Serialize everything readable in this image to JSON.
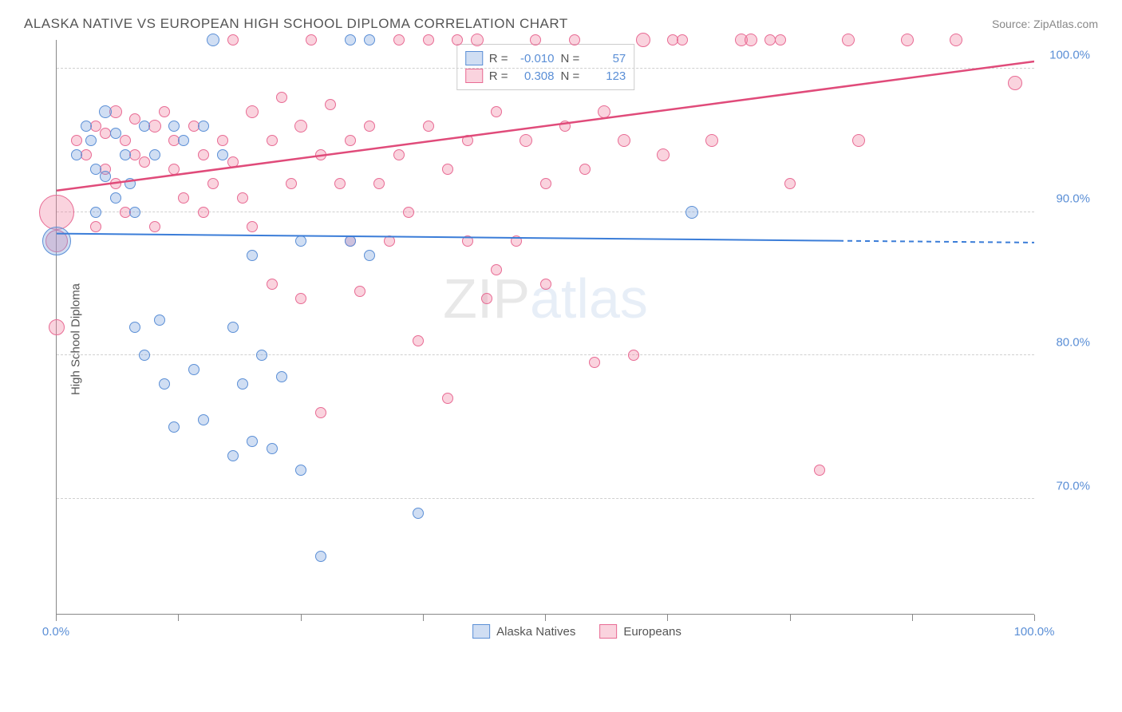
{
  "header": {
    "title": "ALASKA NATIVE VS EUROPEAN HIGH SCHOOL DIPLOMA CORRELATION CHART",
    "source": "Source: ZipAtlas.com"
  },
  "chart": {
    "type": "scatter",
    "y_axis_title": "High School Diploma",
    "xlim": [
      0,
      100
    ],
    "ylim": [
      62,
      102
    ],
    "x_ticks": [
      0,
      12.5,
      25,
      37.5,
      50,
      62.5,
      75,
      87.5,
      100
    ],
    "x_tick_labels": {
      "0": "0.0%",
      "100": "100.0%"
    },
    "y_gridlines": [
      70,
      80,
      90,
      100
    ],
    "y_tick_labels": {
      "70": "70.0%",
      "80": "80.0%",
      "90": "90.0%",
      "100": "100.0%"
    },
    "grid_color": "#d0d0d0",
    "axis_color": "#888888",
    "background_color": "#ffffff",
    "watermark": {
      "part1": "ZIP",
      "part2": "atlas"
    },
    "series": {
      "alaska": {
        "label": "Alaska Natives",
        "fill": "rgba(120,160,220,0.35)",
        "stroke": "#5b8fd6",
        "R_label": "R = ",
        "R": "-0.010",
        "N_label": "N = ",
        "N": "57",
        "trend": {
          "x1": 0,
          "y1": 88.5,
          "x2": 80,
          "y2": 88.0,
          "color": "#3b7dd8",
          "width": 2,
          "dash_extend_to": 100
        },
        "points": [
          {
            "x": 0,
            "y": 88,
            "r": 18
          },
          {
            "x": 2,
            "y": 94,
            "r": 7
          },
          {
            "x": 3,
            "y": 96,
            "r": 7
          },
          {
            "x": 3.5,
            "y": 95,
            "r": 7
          },
          {
            "x": 4,
            "y": 93,
            "r": 7
          },
          {
            "x": 4,
            "y": 90,
            "r": 7
          },
          {
            "x": 5,
            "y": 97,
            "r": 8
          },
          {
            "x": 5,
            "y": 92.5,
            "r": 7
          },
          {
            "x": 6,
            "y": 95.5,
            "r": 7
          },
          {
            "x": 6,
            "y": 91,
            "r": 7
          },
          {
            "x": 7,
            "y": 94,
            "r": 7
          },
          {
            "x": 7.5,
            "y": 92,
            "r": 7
          },
          {
            "x": 8,
            "y": 90,
            "r": 7
          },
          {
            "x": 8,
            "y": 82,
            "r": 7
          },
          {
            "x": 9,
            "y": 96,
            "r": 7
          },
          {
            "x": 9,
            "y": 80,
            "r": 7
          },
          {
            "x": 10,
            "y": 94,
            "r": 7
          },
          {
            "x": 10.5,
            "y": 82.5,
            "r": 7
          },
          {
            "x": 11,
            "y": 78,
            "r": 7
          },
          {
            "x": 12,
            "y": 96,
            "r": 7
          },
          {
            "x": 12,
            "y": 75,
            "r": 7
          },
          {
            "x": 13,
            "y": 95,
            "r": 7
          },
          {
            "x": 14,
            "y": 79,
            "r": 7
          },
          {
            "x": 15,
            "y": 96,
            "r": 7
          },
          {
            "x": 15,
            "y": 75.5,
            "r": 7
          },
          {
            "x": 16,
            "y": 102,
            "r": 8
          },
          {
            "x": 17,
            "y": 94,
            "r": 7
          },
          {
            "x": 18,
            "y": 82,
            "r": 7
          },
          {
            "x": 18,
            "y": 73,
            "r": 7
          },
          {
            "x": 19,
            "y": 78,
            "r": 7
          },
          {
            "x": 20,
            "y": 87,
            "r": 7
          },
          {
            "x": 20,
            "y": 74,
            "r": 7
          },
          {
            "x": 21,
            "y": 80,
            "r": 7
          },
          {
            "x": 22,
            "y": 73.5,
            "r": 7
          },
          {
            "x": 23,
            "y": 78.5,
            "r": 7
          },
          {
            "x": 25,
            "y": 88,
            "r": 7
          },
          {
            "x": 25,
            "y": 72,
            "r": 7
          },
          {
            "x": 27,
            "y": 66,
            "r": 7
          },
          {
            "x": 30,
            "y": 102,
            "r": 7
          },
          {
            "x": 30,
            "y": 88,
            "r": 7
          },
          {
            "x": 32,
            "y": 102,
            "r": 7
          },
          {
            "x": 32,
            "y": 87,
            "r": 7
          },
          {
            "x": 37,
            "y": 69,
            "r": 7
          },
          {
            "x": 65,
            "y": 90,
            "r": 8
          }
        ]
      },
      "european": {
        "label": "Europeans",
        "fill": "rgba(240,130,160,0.35)",
        "stroke": "#e86b94",
        "R_label": "R = ",
        "R": "0.308",
        "N_label": "N = ",
        "N": "123",
        "trend": {
          "x1": 0,
          "y1": 91.5,
          "x2": 100,
          "y2": 100.5,
          "color": "#e04b7a",
          "width": 2.5
        },
        "points": [
          {
            "x": 0,
            "y": 90,
            "r": 22
          },
          {
            "x": 0,
            "y": 82,
            "r": 10
          },
          {
            "x": 0,
            "y": 88,
            "r": 14
          },
          {
            "x": 2,
            "y": 95,
            "r": 7
          },
          {
            "x": 3,
            "y": 94,
            "r": 7
          },
          {
            "x": 4,
            "y": 96,
            "r": 7
          },
          {
            "x": 4,
            "y": 89,
            "r": 7
          },
          {
            "x": 5,
            "y": 95.5,
            "r": 7
          },
          {
            "x": 5,
            "y": 93,
            "r": 7
          },
          {
            "x": 6,
            "y": 97,
            "r": 8
          },
          {
            "x": 6,
            "y": 92,
            "r": 7
          },
          {
            "x": 7,
            "y": 95,
            "r": 7
          },
          {
            "x": 7,
            "y": 90,
            "r": 7
          },
          {
            "x": 8,
            "y": 94,
            "r": 7
          },
          {
            "x": 8,
            "y": 96.5,
            "r": 7
          },
          {
            "x": 9,
            "y": 93.5,
            "r": 7
          },
          {
            "x": 10,
            "y": 96,
            "r": 8
          },
          {
            "x": 10,
            "y": 89,
            "r": 7
          },
          {
            "x": 11,
            "y": 97,
            "r": 7
          },
          {
            "x": 12,
            "y": 95,
            "r": 7
          },
          {
            "x": 12,
            "y": 93,
            "r": 7
          },
          {
            "x": 13,
            "y": 91,
            "r": 7
          },
          {
            "x": 14,
            "y": 96,
            "r": 7
          },
          {
            "x": 15,
            "y": 94,
            "r": 7
          },
          {
            "x": 15,
            "y": 90,
            "r": 7
          },
          {
            "x": 16,
            "y": 92,
            "r": 7
          },
          {
            "x": 17,
            "y": 95,
            "r": 7
          },
          {
            "x": 18,
            "y": 102,
            "r": 7
          },
          {
            "x": 18,
            "y": 93.5,
            "r": 7
          },
          {
            "x": 19,
            "y": 91,
            "r": 7
          },
          {
            "x": 20,
            "y": 97,
            "r": 8
          },
          {
            "x": 20,
            "y": 89,
            "r": 7
          },
          {
            "x": 22,
            "y": 95,
            "r": 7
          },
          {
            "x": 22,
            "y": 85,
            "r": 7
          },
          {
            "x": 23,
            "y": 98,
            "r": 7
          },
          {
            "x": 24,
            "y": 92,
            "r": 7
          },
          {
            "x": 25,
            "y": 96,
            "r": 8
          },
          {
            "x": 25,
            "y": 84,
            "r": 7
          },
          {
            "x": 26,
            "y": 102,
            "r": 7
          },
          {
            "x": 27,
            "y": 94,
            "r": 7
          },
          {
            "x": 27,
            "y": 76,
            "r": 7
          },
          {
            "x": 28,
            "y": 97.5,
            "r": 7
          },
          {
            "x": 29,
            "y": 92,
            "r": 7
          },
          {
            "x": 30,
            "y": 95,
            "r": 7
          },
          {
            "x": 30,
            "y": 88,
            "r": 7
          },
          {
            "x": 31,
            "y": 84.5,
            "r": 7
          },
          {
            "x": 32,
            "y": 96,
            "r": 7
          },
          {
            "x": 33,
            "y": 92,
            "r": 7
          },
          {
            "x": 34,
            "y": 88,
            "r": 7
          },
          {
            "x": 35,
            "y": 102,
            "r": 7
          },
          {
            "x": 35,
            "y": 94,
            "r": 7
          },
          {
            "x": 36,
            "y": 90,
            "r": 7
          },
          {
            "x": 37,
            "y": 81,
            "r": 7
          },
          {
            "x": 38,
            "y": 96,
            "r": 7
          },
          {
            "x": 38,
            "y": 102,
            "r": 7
          },
          {
            "x": 40,
            "y": 93,
            "r": 7
          },
          {
            "x": 40,
            "y": 77,
            "r": 7
          },
          {
            "x": 41,
            "y": 102,
            "r": 7
          },
          {
            "x": 42,
            "y": 95,
            "r": 7
          },
          {
            "x": 42,
            "y": 88,
            "r": 7
          },
          {
            "x": 43,
            "y": 102,
            "r": 8
          },
          {
            "x": 44,
            "y": 84,
            "r": 7
          },
          {
            "x": 45,
            "y": 97,
            "r": 7
          },
          {
            "x": 45,
            "y": 86,
            "r": 7
          },
          {
            "x": 47,
            "y": 88,
            "r": 7
          },
          {
            "x": 48,
            "y": 95,
            "r": 8
          },
          {
            "x": 49,
            "y": 102,
            "r": 7
          },
          {
            "x": 50,
            "y": 92,
            "r": 7
          },
          {
            "x": 50,
            "y": 85,
            "r": 7
          },
          {
            "x": 52,
            "y": 96,
            "r": 7
          },
          {
            "x": 53,
            "y": 102,
            "r": 7
          },
          {
            "x": 54,
            "y": 93,
            "r": 7
          },
          {
            "x": 55,
            "y": 79.5,
            "r": 7
          },
          {
            "x": 56,
            "y": 97,
            "r": 8
          },
          {
            "x": 58,
            "y": 95,
            "r": 8
          },
          {
            "x": 59,
            "y": 80,
            "r": 7
          },
          {
            "x": 60,
            "y": 102,
            "r": 9
          },
          {
            "x": 62,
            "y": 94,
            "r": 8
          },
          {
            "x": 63,
            "y": 102,
            "r": 7
          },
          {
            "x": 64,
            "y": 102,
            "r": 7
          },
          {
            "x": 67,
            "y": 95,
            "r": 8
          },
          {
            "x": 70,
            "y": 102,
            "r": 8
          },
          {
            "x": 71,
            "y": 102,
            "r": 8
          },
          {
            "x": 73,
            "y": 102,
            "r": 7
          },
          {
            "x": 74,
            "y": 102,
            "r": 7
          },
          {
            "x": 75,
            "y": 92,
            "r": 7
          },
          {
            "x": 78,
            "y": 72,
            "r": 7
          },
          {
            "x": 81,
            "y": 102,
            "r": 8
          },
          {
            "x": 82,
            "y": 95,
            "r": 8
          },
          {
            "x": 87,
            "y": 102,
            "r": 8
          },
          {
            "x": 92,
            "y": 102,
            "r": 8
          },
          {
            "x": 98,
            "y": 99,
            "r": 9
          }
        ]
      }
    }
  }
}
